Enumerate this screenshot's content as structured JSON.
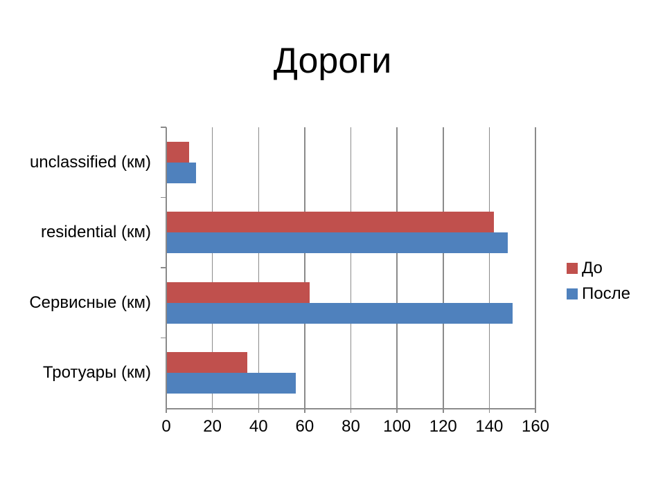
{
  "title": "Дороги",
  "chart_data": {
    "type": "bar",
    "orientation": "horizontal",
    "title": "Дороги",
    "categories": [
      "unclassified (км)",
      "residential (км)",
      "Сервисные (км)",
      "Тротуары (км)"
    ],
    "series": [
      {
        "name": "До",
        "key": "before",
        "color": "#C0504D",
        "values": [
          10,
          142,
          62,
          35
        ]
      },
      {
        "name": "После",
        "key": "after",
        "color": "#4F81BD",
        "values": [
          13,
          148,
          150,
          56
        ]
      }
    ],
    "xlim": [
      0,
      160
    ],
    "xticks": [
      0,
      20,
      40,
      60,
      80,
      100,
      120,
      140,
      160
    ],
    "grid": true,
    "legend_position": "right",
    "colors": {
      "axis": "#8A8A8A",
      "grid": "#8A8A8A",
      "text": "#000000",
      "background": "#FFFFFF"
    }
  }
}
